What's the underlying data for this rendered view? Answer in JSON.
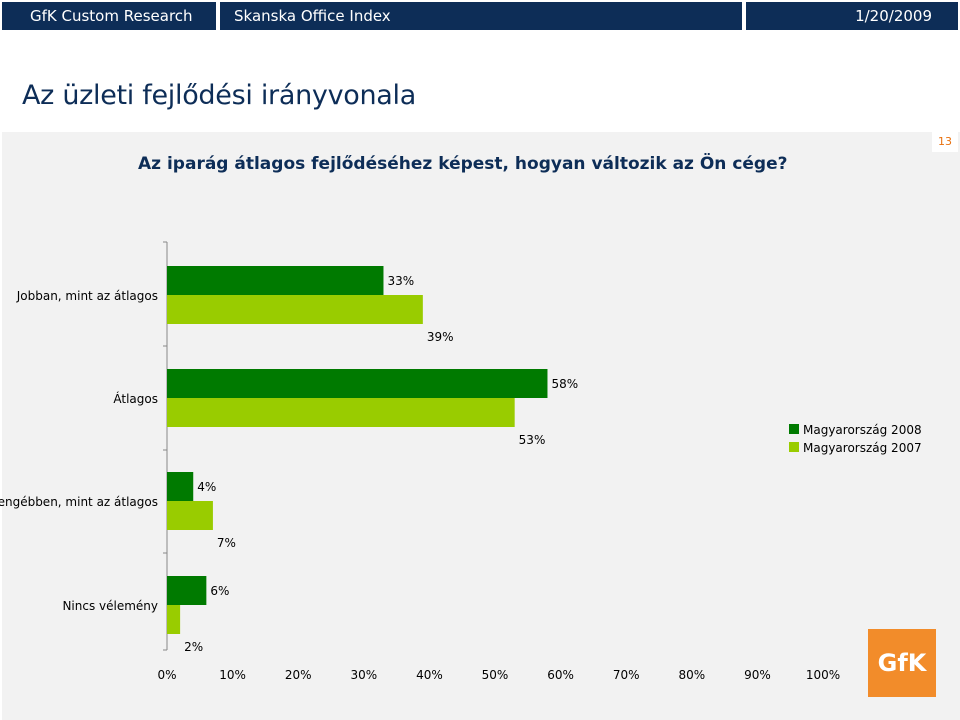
{
  "header": {
    "left_label": "GfK Custom Research",
    "mid_label": "Skanska Office Index",
    "date": "1/20/2009"
  },
  "page_title": "Az üzleti fejlődési irányvonala",
  "question": "Az iparág átlagos fejlődéséhez képest, hogyan változik az Ön cége?",
  "page_number": "13",
  "logo_text": "GfK",
  "colors": {
    "header_bg": "#0d2d57",
    "panel_bg": "#f2f2f2",
    "series_2008": "#007a00",
    "series_2007": "#99cc00",
    "logo_bg": "#f28c2a"
  },
  "chart_data": {
    "type": "bar",
    "orientation": "horizontal",
    "categories": [
      "Jobban, mint az átlagos",
      "Átlagos",
      "Gyengébben, mint az átlagos",
      "Nincs vélemény"
    ],
    "series": [
      {
        "name": "Magyarország 2008",
        "values": [
          33,
          58,
          4,
          6
        ],
        "labels": [
          "33%",
          "58%",
          "4%",
          "6%"
        ]
      },
      {
        "name": "Magyarország 2007",
        "values": [
          39,
          53,
          7,
          2
        ],
        "labels": [
          "39%",
          "53%",
          "7%",
          "2%"
        ]
      }
    ],
    "xlim": [
      0,
      100
    ],
    "xticks": [
      "0%",
      "10%",
      "20%",
      "30%",
      "40%",
      "50%",
      "60%",
      "70%",
      "80%",
      "90%",
      "100%"
    ],
    "legend": "right",
    "grid": false
  }
}
